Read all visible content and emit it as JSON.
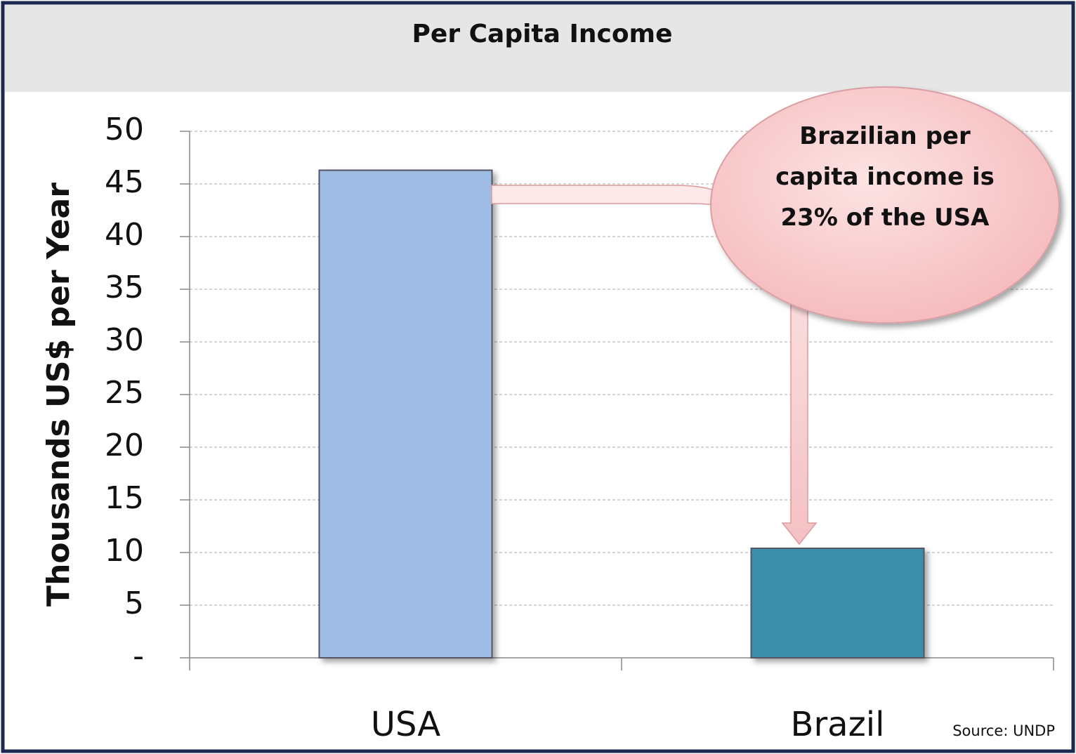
{
  "chart_data": {
    "type": "bar",
    "title": "Per Capita Income",
    "y_label": "Thousands US$ per Year",
    "categories": [
      "USA",
      "Brazil"
    ],
    "series": [
      {
        "name": "Per Capita Income",
        "colors": [
          "#9fbde4",
          "#3a8ea8"
        ],
        "values": [
          46.3,
          10.4
        ]
      }
    ],
    "ylim": [
      0,
      50
    ],
    "yticks": [
      {
        "value": 0,
        "label": "-"
      },
      5,
      10,
      15,
      20,
      25,
      30,
      35,
      40,
      45,
      50
    ],
    "grid": true,
    "annotation": "Brazilian per capita income is 23% of the USA",
    "source": "Source: UNDP"
  }
}
